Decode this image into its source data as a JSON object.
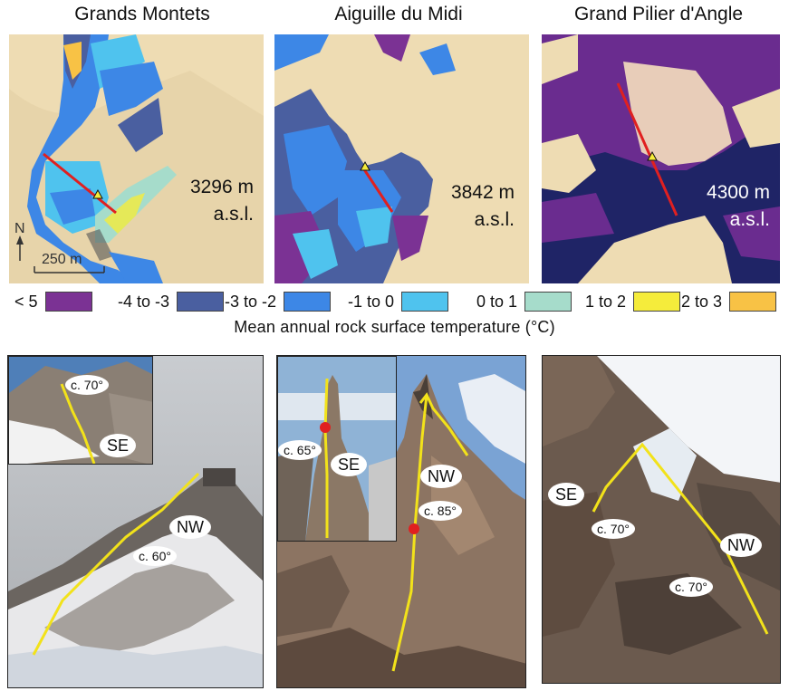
{
  "titles": {
    "grands_montets": "Grands Montets",
    "aiguille_du_midi": "Aiguille du Midi",
    "grand_pilier": "Grand Pilier d'Angle"
  },
  "maps": {
    "grands_montets": {
      "altitude": "3296 m",
      "asl": "a.s.l.",
      "north": "N",
      "scale": "250 m"
    },
    "aiguille_du_midi": {
      "altitude": "3842 m",
      "asl": "a.s.l."
    },
    "grand_pilier": {
      "altitude": "4300 m",
      "asl": "a.s.l."
    }
  },
  "legend": {
    "title": "Mean annual rock surface temperature (°C)",
    "items": [
      {
        "label": "< 5",
        "color": "#7b3294"
      },
      {
        "label": "-4 to -3",
        "color": "#4a5fa0"
      },
      {
        "label": "-3 to -2",
        "color": "#3d87e6"
      },
      {
        "label": "-1 to 0",
        "color": "#4fc3ee"
      },
      {
        "label": "0 to 1",
        "color": "#a6dccb"
      },
      {
        "label": "1 to 2",
        "color": "#f5ec3b"
      },
      {
        "label": "2 to 3",
        "color": "#f8c245"
      }
    ]
  },
  "photos": {
    "grands_montets": {
      "inset_se": "SE",
      "inset_angle": "c. 70°",
      "nw": "NW",
      "angle": "c. 60°"
    },
    "aiguille_du_midi": {
      "inset_se": "SE",
      "inset_angle": "c. 65°",
      "nw": "NW",
      "angle": "c. 85°"
    },
    "grand_pilier": {
      "se": "SE",
      "se_angle": "c. 70°",
      "nw": "NW",
      "nw_angle": "c. 70°"
    }
  },
  "colors": {
    "terrain": "#eedcb3",
    "profile_line": "#e02020",
    "face_line": "#f2e21a"
  }
}
